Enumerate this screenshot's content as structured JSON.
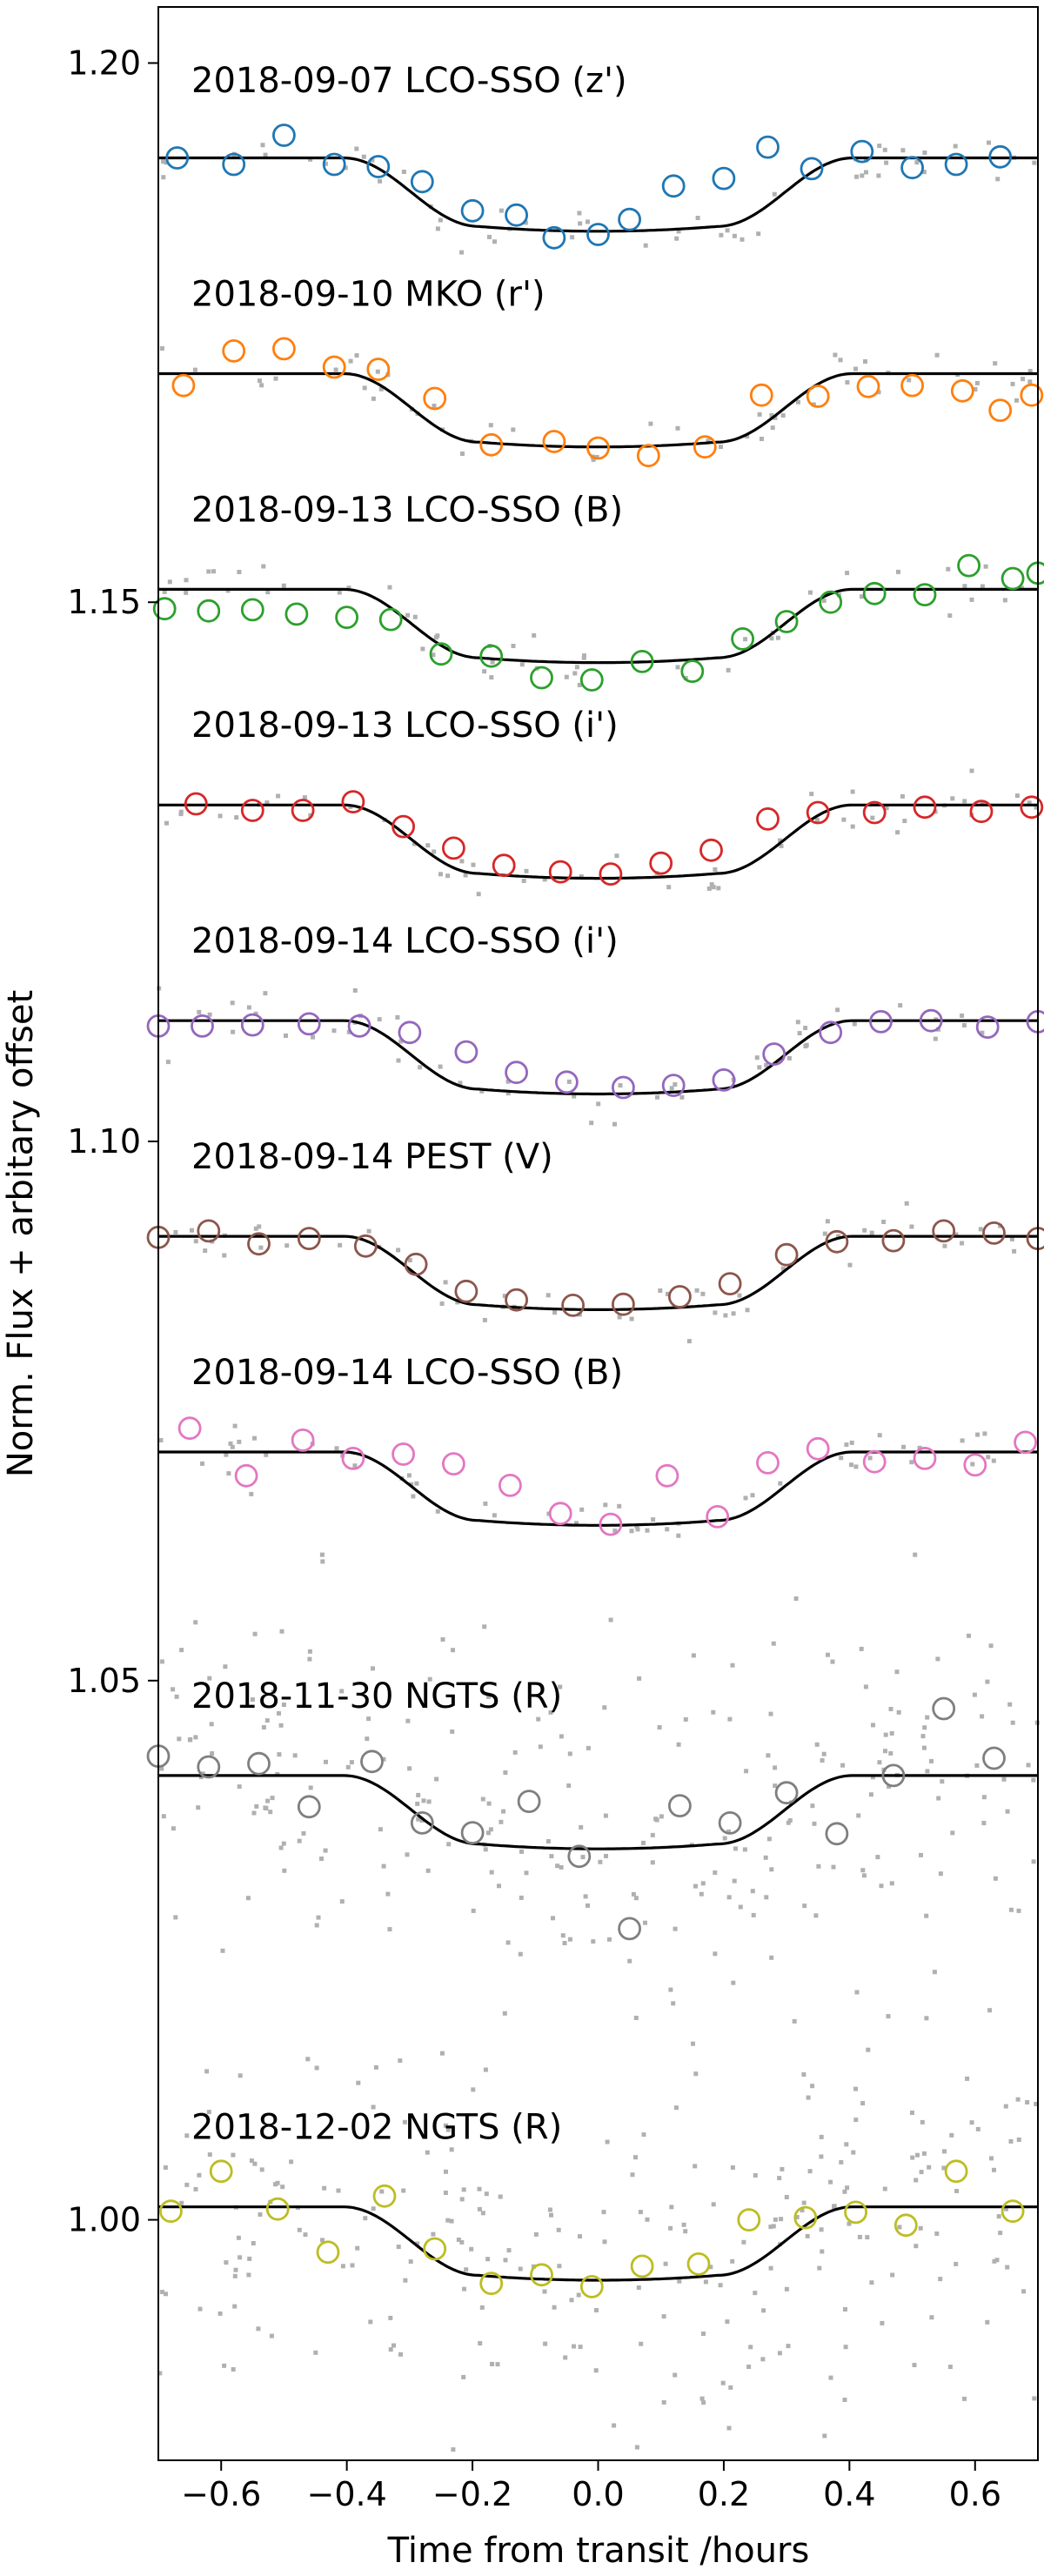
{
  "chart_data": {
    "type": "scatter",
    "xlabel": "Time from transit /hours",
    "ylabel": "Norm. Flux + arbitary offset",
    "xlim": [
      -0.7,
      0.7
    ],
    "ylim": [
      0.9777,
      1.2052
    ],
    "xticks": [
      {
        "value": -0.6,
        "label": "−0.6"
      },
      {
        "value": -0.4,
        "label": "−0.4"
      },
      {
        "value": -0.2,
        "label": "−0.2"
      },
      {
        "value": 0.0,
        "label": "0.0"
      },
      {
        "value": 0.2,
        "label": "0.2"
      },
      {
        "value": 0.4,
        "label": "0.4"
      },
      {
        "value": 0.6,
        "label": "0.6"
      }
    ],
    "yticks": [
      {
        "value": 1.0,
        "label": "1.00"
      },
      {
        "value": 1.05,
        "label": "1.05"
      },
      {
        "value": 1.1,
        "label": "1.10"
      },
      {
        "value": 1.15,
        "label": "1.15"
      },
      {
        "value": 1.2,
        "label": "1.20"
      }
    ],
    "grid": false,
    "legend": "none",
    "model": {
      "depth": 0.0068,
      "half_duration": 0.405,
      "ingress": 0.215
    },
    "raw_color": "#b0b0b0",
    "model_color": "#000000",
    "series": [
      {
        "name": "2018-09-07 LCO-SSO (z')",
        "color": "#1f77b4",
        "baseline": 1.1912,
        "label_y": 1.1973,
        "x": [
          -0.67,
          -0.58,
          -0.5,
          -0.42,
          -0.35,
          -0.28,
          -0.2,
          -0.13,
          -0.07,
          0.0,
          0.05,
          0.12,
          0.2,
          0.27,
          0.34,
          0.42,
          0.5,
          0.57,
          0.64
        ],
        "y": [
          1.1912,
          1.1906,
          1.1933,
          1.1906,
          1.1904,
          1.189,
          1.1863,
          1.1859,
          1.1838,
          1.1841,
          1.1855,
          1.1886,
          1.1893,
          1.1922,
          1.1902,
          1.1918,
          1.1903,
          1.1906,
          1.1913
        ]
      },
      {
        "name": "2018-09-10 MKO (r')",
        "color": "#ff7f0e",
        "baseline": 1.1712,
        "label_y": 1.1775,
        "x": [
          -0.66,
          -0.58,
          -0.5,
          -0.42,
          -0.35,
          -0.26,
          -0.17,
          -0.07,
          0.0,
          0.08,
          0.17,
          0.26,
          0.35,
          0.43,
          0.5,
          0.58,
          0.64,
          0.69
        ],
        "y": [
          1.1701,
          1.1733,
          1.1735,
          1.1718,
          1.1716,
          1.1689,
          1.1646,
          1.1649,
          1.1643,
          1.1636,
          1.1644,
          1.1692,
          1.1691,
          1.17,
          1.1701,
          1.1696,
          1.1678,
          1.1692
        ]
      },
      {
        "name": "2018-09-13 LCO-SSO (B)",
        "color": "#2ca02c",
        "baseline": 1.1512,
        "label_y": 1.1575,
        "x": [
          -0.69,
          -0.62,
          -0.55,
          -0.48,
          -0.4,
          -0.33,
          -0.25,
          -0.17,
          -0.09,
          -0.01,
          0.07,
          0.15,
          0.23,
          0.3,
          0.37,
          0.44,
          0.52,
          0.59,
          0.66,
          0.7
        ],
        "y": [
          1.1494,
          1.1492,
          1.1493,
          1.1489,
          1.1486,
          1.1484,
          1.1452,
          1.145,
          1.143,
          1.1428,
          1.1445,
          1.1436,
          1.1466,
          1.1482,
          1.15,
          1.1508,
          1.1507,
          1.1534,
          1.1522,
          1.1527
        ]
      },
      {
        "name": "2018-09-13 LCO-SSO (i')",
        "color": "#d62728",
        "baseline": 1.1312,
        "label_y": 1.1375,
        "x": [
          -0.64,
          -0.55,
          -0.47,
          -0.39,
          -0.31,
          -0.23,
          -0.15,
          -0.06,
          0.02,
          0.1,
          0.18,
          0.27,
          0.35,
          0.44,
          0.52,
          0.61,
          0.69
        ],
        "y": [
          1.1313,
          1.1307,
          1.1307,
          1.1315,
          1.1292,
          1.1272,
          1.1256,
          1.125,
          1.1248,
          1.1258,
          1.127,
          1.1299,
          1.1305,
          1.1305,
          1.131,
          1.1306,
          1.131
        ]
      },
      {
        "name": "2018-09-14 LCO-SSO (i')",
        "color": "#9467bd",
        "baseline": 1.1112,
        "label_y": 1.1175,
        "x": [
          -0.7,
          -0.63,
          -0.55,
          -0.46,
          -0.38,
          -0.3,
          -0.21,
          -0.13,
          -0.05,
          0.04,
          0.12,
          0.2,
          0.28,
          0.37,
          0.45,
          0.53,
          0.62,
          0.7
        ],
        "y": [
          1.1107,
          1.1107,
          1.1108,
          1.1109,
          1.1107,
          1.1101,
          1.1083,
          1.1064,
          1.1055,
          1.105,
          1.1052,
          1.1057,
          1.1081,
          1.1101,
          1.1111,
          1.1112,
          1.1106,
          1.1111
        ]
      },
      {
        "name": "2018-09-14 PEST (V)",
        "color": "#8c564b",
        "baseline": 1.0912,
        "label_y": 1.0975,
        "x": [
          -0.7,
          -0.62,
          -0.54,
          -0.46,
          -0.37,
          -0.29,
          -0.21,
          -0.13,
          -0.04,
          0.04,
          0.13,
          0.21,
          0.3,
          0.38,
          0.47,
          0.55,
          0.63,
          0.7
        ],
        "y": [
          1.0911,
          1.0917,
          1.0905,
          1.091,
          1.0903,
          1.0886,
          1.0861,
          1.0853,
          1.0848,
          1.0849,
          1.0856,
          1.0868,
          1.0895,
          1.0907,
          1.0908,
          1.0917,
          1.0915,
          1.091
        ]
      },
      {
        "name": "2018-09-14 LCO-SSO (B)",
        "color": "#e377c2",
        "baseline": 1.0712,
        "label_y": 1.0775,
        "x": [
          -0.65,
          -0.56,
          -0.47,
          -0.39,
          -0.31,
          -0.23,
          -0.14,
          -0.06,
          0.02,
          0.11,
          0.19,
          0.27,
          0.35,
          0.44,
          0.52,
          0.6,
          0.68
        ],
        "y": [
          1.0734,
          1.069,
          1.0723,
          1.0706,
          1.071,
          1.0701,
          1.0681,
          1.0655,
          1.0645,
          1.069,
          1.0652,
          1.0702,
          1.0715,
          1.0703,
          1.0706,
          1.07,
          1.0721
        ]
      },
      {
        "name": "2018-11-30 NGTS (R)",
        "color": "#7f7f7f",
        "baseline": 1.0412,
        "label_y": 1.0475,
        "x": [
          -0.7,
          -0.62,
          -0.54,
          -0.46,
          -0.36,
          -0.28,
          -0.2,
          -0.11,
          -0.03,
          0.05,
          0.13,
          0.21,
          0.3,
          0.38,
          0.47,
          0.55,
          0.63
        ],
        "y": [
          1.043,
          1.042,
          1.0423,
          1.0383,
          1.0425,
          1.0368,
          1.0359,
          1.0388,
          1.0337,
          1.027,
          1.0384,
          1.0368,
          1.0396,
          1.0358,
          1.0412,
          1.0474,
          1.0428
        ]
      },
      {
        "name": "2018-12-02 NGTS (R)",
        "color": "#bcbd22",
        "baseline": 1.0012,
        "label_y": 1.0075,
        "x": [
          -0.68,
          -0.6,
          -0.51,
          -0.43,
          -0.34,
          -0.26,
          -0.17,
          -0.09,
          -0.01,
          0.07,
          0.16,
          0.24,
          0.33,
          0.41,
          0.49,
          0.57,
          0.66
        ],
        "y": [
          1.0008,
          1.0045,
          1.001,
          0.997,
          1.0022,
          0.9973,
          0.9941,
          0.9949,
          0.9938,
          0.9957,
          0.9959,
          1.0,
          1.0002,
          1.0007,
          0.9995,
          1.0045,
          1.0008
        ]
      }
    ]
  }
}
